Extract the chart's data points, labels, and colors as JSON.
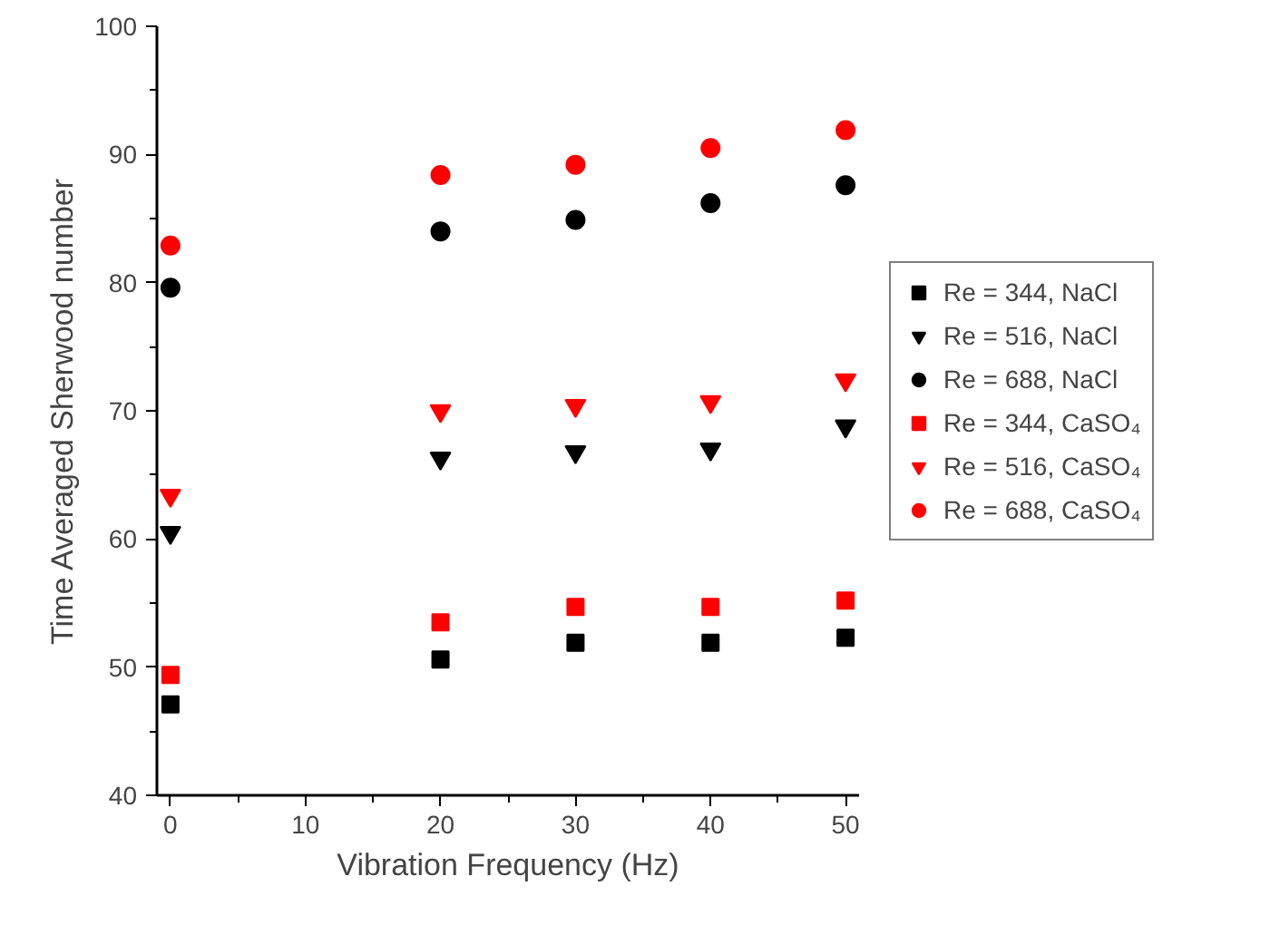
{
  "chart_data": {
    "type": "scatter",
    "xlabel": "Vibration Frequency (Hz)",
    "ylabel": "Time Averaged Sherwood number",
    "x": [
      0,
      20,
      30,
      40,
      50
    ],
    "xlim": [
      -1,
      51
    ],
    "xticks": [
      0,
      10,
      20,
      30,
      40,
      50
    ],
    "ylim": [
      40,
      100
    ],
    "yticks": [
      40,
      50,
      60,
      70,
      80,
      90,
      100
    ],
    "grid": false,
    "legend": "right",
    "series": [
      {
        "name": "Re = 344, NaCl",
        "color": "#000000",
        "marker": "square",
        "values": [
          47.1,
          50.6,
          51.9,
          51.9,
          52.3
        ]
      },
      {
        "name": "Re = 516, NaCl",
        "color": "#000000",
        "marker": "triangle",
        "values": [
          60.5,
          66.3,
          66.8,
          67.0,
          68.8
        ]
      },
      {
        "name": "Re = 688, NaCl",
        "color": "#000000",
        "marker": "circle",
        "values": [
          79.6,
          84.0,
          84.9,
          86.2,
          87.6
        ]
      },
      {
        "name": "Re = 344, CaSO₄",
        "color": "#ff0000",
        "marker": "square",
        "values": [
          49.4,
          53.5,
          54.7,
          54.7,
          55.2
        ]
      },
      {
        "name": "Re = 516, CaSO₄",
        "color": "#ff0000",
        "marker": "triangle",
        "values": [
          63.4,
          70.0,
          70.4,
          70.7,
          72.4
        ]
      },
      {
        "name": "Re = 688, CaSO₄",
        "color": "#ff0000",
        "marker": "circle",
        "values": [
          82.9,
          88.4,
          89.2,
          90.5,
          91.9
        ]
      }
    ]
  }
}
